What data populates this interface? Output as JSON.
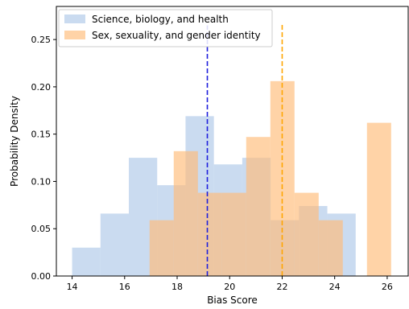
{
  "chart_data": {
    "type": "histogram",
    "xlabel": "Bias Score",
    "ylabel": "Probability Density",
    "xlim": [
      13.4,
      26.8
    ],
    "ylim": [
      0.0,
      0.285
    ],
    "xticks": [
      14,
      16,
      18,
      20,
      22,
      24,
      26
    ],
    "yticks": [
      0.0,
      0.05,
      0.1,
      0.15,
      0.2,
      0.25
    ],
    "xtick_labels": [
      "14",
      "16",
      "18",
      "20",
      "22",
      "24",
      "26"
    ],
    "ytick_labels": [
      "0.00",
      "0.05",
      "0.10",
      "0.15",
      "0.20",
      "0.25"
    ],
    "legend_position": "top-left",
    "series": [
      {
        "name": "Science, biology, and health",
        "color": "#aec7e8",
        "edges": [
          14.0,
          15.08,
          16.16,
          17.24,
          18.32,
          19.4,
          20.48,
          21.56,
          22.64,
          23.72,
          24.8
        ],
        "values": [
          0.03,
          0.066,
          0.125,
          0.096,
          0.169,
          0.118,
          0.125,
          0.059,
          0.074,
          0.066
        ]
      },
      {
        "name": "Sex, sexuality, and gender identity",
        "color": "#ffbb78",
        "edges": [
          16.95,
          17.87,
          18.79,
          19.71,
          20.63,
          21.55,
          22.47,
          23.39,
          24.31,
          25.23,
          26.15
        ],
        "values": [
          0.059,
          0.132,
          0.088,
          0.088,
          0.147,
          0.206,
          0.088,
          0.059,
          0.0,
          0.162
        ]
      }
    ],
    "vlines": [
      {
        "x": 19.15,
        "y_top": 0.265,
        "color": "#1f1fdd",
        "style": "dashed"
      },
      {
        "x": 22.0,
        "y_top": 0.268,
        "color": "#ffa500",
        "style": "dashed"
      }
    ],
    "grid": false
  }
}
